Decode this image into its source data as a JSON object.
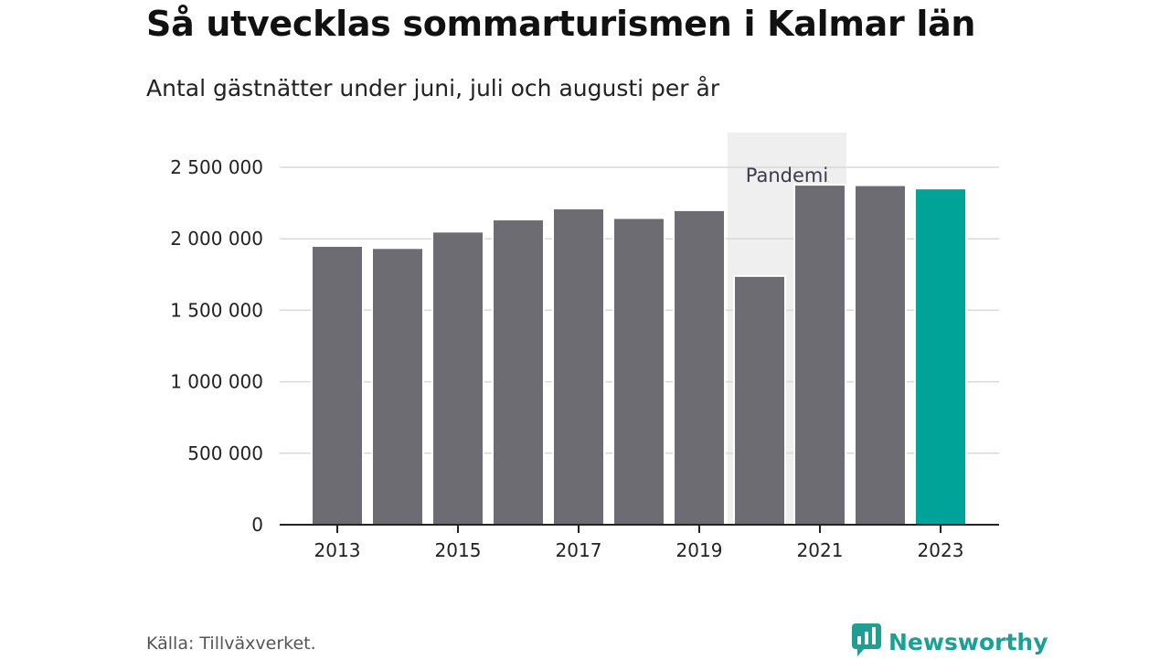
{
  "title": "Så utvecklas sommarturismen i Kalmar län",
  "subtitle": "Antal gästnätter under juni, juli och augusti per år",
  "source": "Källa: Tillväxverket.",
  "brand": {
    "name": "Newsworthy",
    "icon": "newsworthy-logo-icon"
  },
  "colors": {
    "bar": "#6d6c73",
    "highlight": "#00a398",
    "band": "#efefef",
    "grid": "#d9d9d9",
    "axis": "#222222",
    "brand": "#1f9e93"
  },
  "chart_data": {
    "type": "bar",
    "title": "Så utvecklas sommarturismen i Kalmar län",
    "subtitle": "Antal gästnätter under juni, juli och augusti per år",
    "categories": [
      "2013",
      "2014",
      "2015",
      "2016",
      "2017",
      "2018",
      "2019",
      "2020",
      "2021",
      "2022",
      "2023"
    ],
    "values": [
      1950000,
      1935000,
      2050000,
      2135000,
      2212000,
      2145000,
      2200000,
      1740000,
      2378000,
      2375000,
      2352000
    ],
    "highlight_category": "2023",
    "x_tick_labels": [
      "2013",
      "2015",
      "2017",
      "2019",
      "2021",
      "2023"
    ],
    "y_ticks": [
      0,
      500000,
      1000000,
      1500000,
      2000000,
      2500000
    ],
    "y_tick_labels": [
      "0",
      "500 000",
      "1 000 000",
      "1 500 000",
      "2 000 000",
      "2 500 000"
    ],
    "ylim": [
      0,
      2500000
    ],
    "xlabel": "",
    "ylabel": "",
    "grid": true,
    "annotation": {
      "label": "Pandemi",
      "from": "2020",
      "to": "2021"
    }
  }
}
